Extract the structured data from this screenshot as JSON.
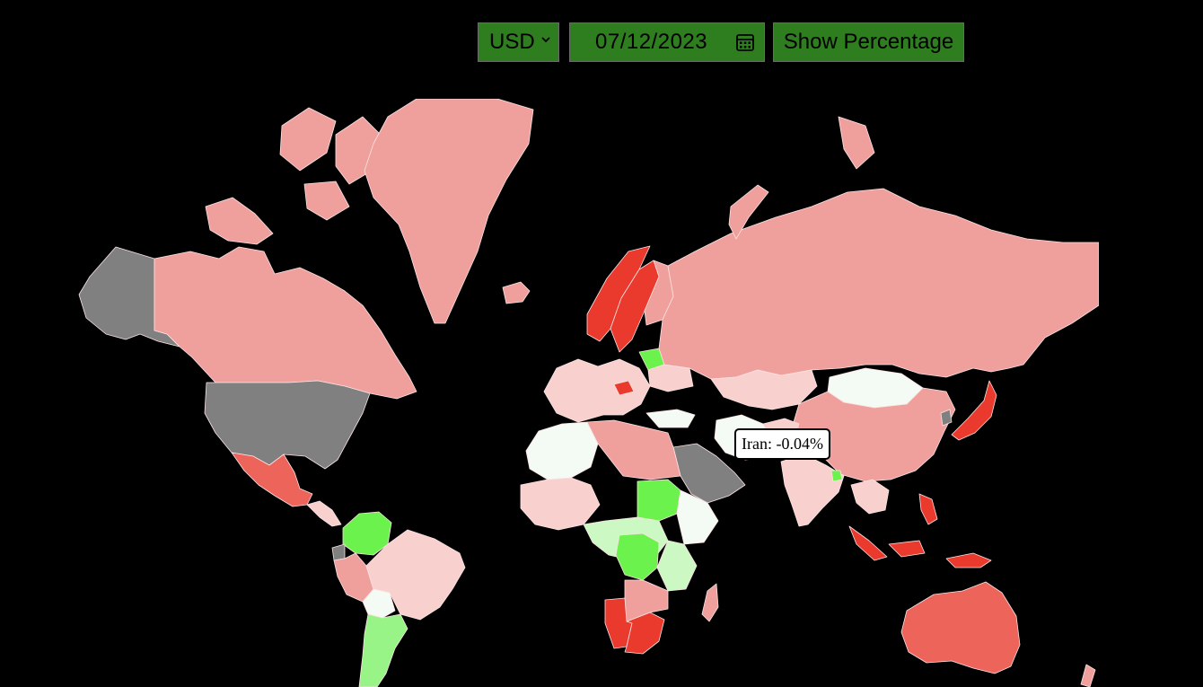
{
  "controls": {
    "currency": "USD",
    "date": "07/12/2023",
    "toggle_label": "Show Percentage"
  },
  "map": {
    "colors": {
      "strong_negative": "#ea3a2e",
      "negative": "#ed645a",
      "slight_negative": "#f0a09c",
      "light_negative": "#f8d0ce",
      "neutral": "#f4fbf4",
      "slight_positive": "#ccf8c4",
      "positive": "#98f486",
      "strong_positive": "#6cf24c",
      "no_data": "#808080"
    },
    "countries": [
      {
        "name": "Alaska",
        "tone": "no_data"
      },
      {
        "name": "Canada",
        "tone": "slight_negative"
      },
      {
        "name": "Greenland",
        "tone": "slight_negative"
      },
      {
        "name": "United States",
        "tone": "no_data"
      },
      {
        "name": "Mexico",
        "tone": "negative"
      },
      {
        "name": "Colombia",
        "tone": "strong_positive"
      },
      {
        "name": "Brazil",
        "tone": "light_negative"
      },
      {
        "name": "Argentina",
        "tone": "positive"
      },
      {
        "name": "Norway",
        "tone": "strong_negative"
      },
      {
        "name": "Sweden",
        "tone": "strong_negative"
      },
      {
        "name": "Belarus",
        "tone": "strong_positive"
      },
      {
        "name": "Russia",
        "tone": "slight_negative"
      },
      {
        "name": "Mongolia",
        "tone": "neutral"
      },
      {
        "name": "China",
        "tone": "slight_negative"
      },
      {
        "name": "Japan",
        "tone": "strong_negative"
      },
      {
        "name": "Iran",
        "tone": "neutral"
      },
      {
        "name": "Saudi Arabia",
        "tone": "no_data"
      },
      {
        "name": "India",
        "tone": "light_negative"
      },
      {
        "name": "Sudan",
        "tone": "strong_positive"
      },
      {
        "name": "DR Congo",
        "tone": "strong_positive"
      },
      {
        "name": "Namibia",
        "tone": "strong_negative"
      },
      {
        "name": "South Africa",
        "tone": "strong_negative"
      },
      {
        "name": "Indonesia",
        "tone": "strong_negative"
      },
      {
        "name": "Australia",
        "tone": "negative"
      }
    ],
    "tooltip": "Iran: -0.04%"
  }
}
